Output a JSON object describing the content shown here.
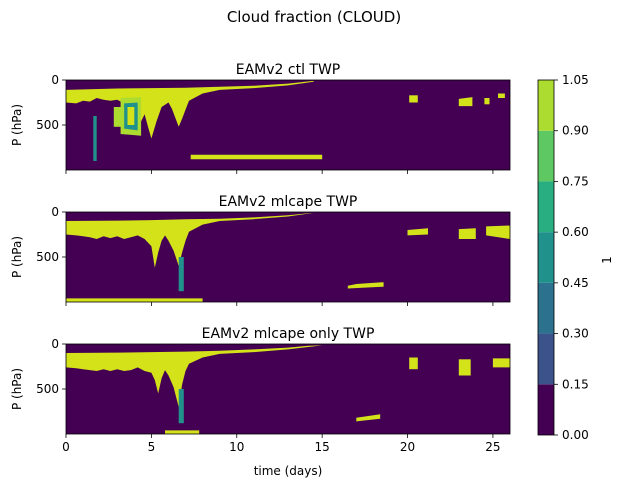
{
  "figure": {
    "suptitle": "Cloud fraction (CLOUD)"
  },
  "colors": {
    "levels": [
      "#440154",
      "#3b528b",
      "#2c728e",
      "#21918c",
      "#28ae80",
      "#5ec962",
      "#addc30",
      "#d4e21a"
    ]
  },
  "chart_data": {
    "type": "heatmap",
    "x_label": "time (days)",
    "x_ticks": [
      0,
      5,
      10,
      15,
      20,
      25
    ],
    "x_range": [
      0,
      26
    ],
    "y_label": "P (hPa)",
    "y_ticks": [
      0,
      500
    ],
    "y_range": [
      0,
      1000
    ],
    "colorbar": {
      "label": "1",
      "boundaries": [
        0.0,
        0.15,
        0.3,
        0.45,
        0.6,
        0.75,
        0.9,
        1.05
      ],
      "tick_labels": [
        "0.00",
        "0.15",
        "0.30",
        "0.45",
        "0.60",
        "0.75",
        "0.90",
        "1.05"
      ]
    },
    "panels": [
      {
        "title": "EAMv2 ctl TWP",
        "regions": [
          {
            "level": 7,
            "poly": [
              [
                0,
                110
              ],
              [
                3,
                95
              ],
              [
                5,
                90
              ],
              [
                7,
                85
              ],
              [
                9,
                75
              ],
              [
                11,
                65
              ],
              [
                13,
                40
              ],
              [
                14,
                20
              ],
              [
                14.5,
                10
              ],
              [
                14.5,
                20
              ],
              [
                13,
                60
              ],
              [
                11,
                90
              ],
              [
                9,
                110
              ],
              [
                8,
                150
              ],
              [
                7.2,
                230
              ],
              [
                7,
                330
              ],
              [
                6.8,
                430
              ],
              [
                6.6,
                520
              ],
              [
                6.4,
                420
              ],
              [
                6.2,
                320
              ],
              [
                6,
                250
              ],
              [
                5.6,
                300
              ],
              [
                5.3,
                460
              ],
              [
                5,
                650
              ],
              [
                4.8,
                520
              ],
              [
                4.6,
                380
              ],
              [
                4.4,
                460
              ],
              [
                4.2,
                560
              ],
              [
                4,
                420
              ],
              [
                3.8,
                300
              ],
              [
                3.4,
                260
              ],
              [
                3,
                220
              ],
              [
                2.6,
                230
              ],
              [
                2.2,
                220
              ],
              [
                1.8,
                200
              ],
              [
                1.4,
                240
              ],
              [
                1,
                230
              ],
              [
                0.6,
                260
              ],
              [
                0,
                250
              ]
            ]
          },
          {
            "level": 6,
            "poly": [
              [
                3.2,
                200
              ],
              [
                4.4,
                190
              ],
              [
                4.4,
                620
              ],
              [
                3.2,
                600
              ]
            ]
          },
          {
            "level": 3,
            "poly": [
              [
                3.4,
                260
              ],
              [
                4.2,
                250
              ],
              [
                4.2,
                560
              ],
              [
                3.4,
                540
              ]
            ]
          },
          {
            "level": 7,
            "poly": [
              [
                3.6,
                300
              ],
              [
                4,
                300
              ],
              [
                4,
                500
              ],
              [
                3.6,
                500
              ]
            ]
          },
          {
            "level": 6,
            "poly": [
              [
                2.8,
                300
              ],
              [
                3.4,
                300
              ],
              [
                3.4,
                520
              ],
              [
                2.8,
                520
              ]
            ]
          },
          {
            "level": 7,
            "poly": [
              [
                20.1,
                170
              ],
              [
                20.6,
                170
              ],
              [
                20.6,
                250
              ],
              [
                20.1,
                250
              ]
            ]
          },
          {
            "level": 7,
            "poly": [
              [
                23,
                210
              ],
              [
                23.8,
                190
              ],
              [
                23.8,
                290
              ],
              [
                23,
                290
              ]
            ]
          },
          {
            "level": 7,
            "poly": [
              [
                24.5,
                200
              ],
              [
                24.8,
                200
              ],
              [
                24.8,
                270
              ],
              [
                24.5,
                270
              ]
            ]
          },
          {
            "level": 7,
            "poly": [
              [
                25.3,
                150
              ],
              [
                25.7,
                150
              ],
              [
                25.7,
                200
              ],
              [
                25.3,
                200
              ]
            ]
          },
          {
            "level": 7,
            "poly": [
              [
                7.3,
                830
              ],
              [
                15,
                830
              ],
              [
                15,
                880
              ],
              [
                7.3,
                880
              ]
            ]
          },
          {
            "level": 3,
            "poly": [
              [
                1.6,
                400
              ],
              [
                1.8,
                400
              ],
              [
                1.8,
                900
              ],
              [
                1.6,
                900
              ]
            ]
          }
        ]
      },
      {
        "title": "EAMv2 mlcape TWP",
        "regions": [
          {
            "level": 7,
            "poly": [
              [
                0,
                100
              ],
              [
                3,
                95
              ],
              [
                5,
                90
              ],
              [
                7,
                80
              ],
              [
                9,
                75
              ],
              [
                11,
                60
              ],
              [
                13,
                35
              ],
              [
                14.2,
                15
              ],
              [
                14.5,
                10
              ],
              [
                13,
                50
              ],
              [
                11,
                80
              ],
              [
                9,
                100
              ],
              [
                8,
                140
              ],
              [
                7.2,
                220
              ],
              [
                7,
                320
              ],
              [
                6.8,
                450
              ],
              [
                6.6,
                600
              ],
              [
                6.3,
                430
              ],
              [
                6,
                320
              ],
              [
                5.8,
                260
              ],
              [
                5.6,
                320
              ],
              [
                5.4,
                450
              ],
              [
                5.2,
                620
              ],
              [
                5,
                380
              ],
              [
                4.6,
                300
              ],
              [
                4.2,
                260
              ],
              [
                3.8,
                280
              ],
              [
                3.4,
                300
              ],
              [
                3,
                270
              ],
              [
                2.6,
                290
              ],
              [
                2.2,
                270
              ],
              [
                1.8,
                300
              ],
              [
                1.4,
                280
              ],
              [
                1,
                270
              ],
              [
                0.6,
                260
              ],
              [
                0,
                250
              ]
            ]
          },
          {
            "level": 3,
            "poly": [
              [
                6.6,
                500
              ],
              [
                6.9,
                500
              ],
              [
                6.9,
                880
              ],
              [
                6.6,
                880
              ]
            ]
          },
          {
            "level": 7,
            "poly": [
              [
                20,
                200
              ],
              [
                21.2,
                180
              ],
              [
                21.2,
                250
              ],
              [
                20,
                260
              ]
            ]
          },
          {
            "level": 7,
            "poly": [
              [
                23,
                190
              ],
              [
                24,
                180
              ],
              [
                24,
                300
              ],
              [
                23,
                300
              ]
            ]
          },
          {
            "level": 7,
            "poly": [
              [
                24.6,
                160
              ],
              [
                26,
                150
              ],
              [
                26,
                300
              ],
              [
                24.6,
                260
              ]
            ]
          },
          {
            "level": 7,
            "poly": [
              [
                16.5,
                820
              ],
              [
                17,
                800
              ],
              [
                18.6,
                780
              ],
              [
                18.6,
                830
              ],
              [
                16.5,
                850
              ]
            ]
          },
          {
            "level": 7,
            "poly": [
              [
                0,
                960
              ],
              [
                8,
                960
              ],
              [
                8,
                1000
              ],
              [
                0,
                1000
              ]
            ]
          }
        ]
      },
      {
        "title": "EAMv2 mlcape only TWP",
        "regions": [
          {
            "level": 7,
            "poly": [
              [
                0,
                100
              ],
              [
                3,
                95
              ],
              [
                5,
                90
              ],
              [
                7,
                85
              ],
              [
                9,
                75
              ],
              [
                11,
                60
              ],
              [
                13,
                40
              ],
              [
                14.2,
                20
              ],
              [
                15,
                15
              ],
              [
                13,
                60
              ],
              [
                11,
                90
              ],
              [
                9,
                110
              ],
              [
                8,
                150
              ],
              [
                7.2,
                220
              ],
              [
                7,
                300
              ],
              [
                6.8,
                450
              ],
              [
                6.6,
                700
              ],
              [
                6.3,
                480
              ],
              [
                6,
                350
              ],
              [
                5.8,
                290
              ],
              [
                5.6,
                380
              ],
              [
                5.4,
                550
              ],
              [
                5.2,
                400
              ],
              [
                5,
                320
              ],
              [
                4.6,
                300
              ],
              [
                4.2,
                260
              ],
              [
                3.8,
                290
              ],
              [
                3.4,
                300
              ],
              [
                3,
                280
              ],
              [
                2.6,
                300
              ],
              [
                2.2,
                280
              ],
              [
                1.8,
                300
              ],
              [
                1.4,
                290
              ],
              [
                1,
                280
              ],
              [
                0.6,
                270
              ],
              [
                0,
                260
              ]
            ]
          },
          {
            "level": 3,
            "poly": [
              [
                6.6,
                500
              ],
              [
                6.9,
                500
              ],
              [
                6.9,
                880
              ],
              [
                6.6,
                880
              ]
            ]
          },
          {
            "level": 7,
            "poly": [
              [
                20.1,
                150
              ],
              [
                20.6,
                150
              ],
              [
                20.6,
                280
              ],
              [
                20.1,
                280
              ]
            ]
          },
          {
            "level": 7,
            "poly": [
              [
                23,
                170
              ],
              [
                23.7,
                170
              ],
              [
                23.7,
                350
              ],
              [
                23,
                350
              ]
            ]
          },
          {
            "level": 7,
            "poly": [
              [
                25,
                160
              ],
              [
                26,
                160
              ],
              [
                26,
                260
              ],
              [
                25,
                260
              ]
            ]
          },
          {
            "level": 7,
            "poly": [
              [
                17,
                820
              ],
              [
                18.4,
                780
              ],
              [
                18.4,
                830
              ],
              [
                17,
                860
              ]
            ]
          },
          {
            "level": 7,
            "poly": [
              [
                5.8,
                960
              ],
              [
                7.8,
                960
              ],
              [
                7.8,
                1000
              ],
              [
                5.8,
                1000
              ]
            ]
          }
        ]
      }
    ]
  }
}
